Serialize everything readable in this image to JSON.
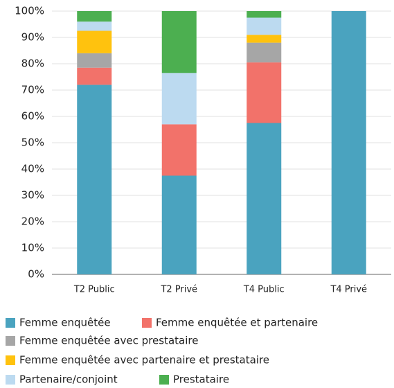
{
  "chart_data": {
    "type": "stacked_bar",
    "categories": [
      "T2 Public",
      "T2 Privé",
      "T4 Public",
      "T4 Privé"
    ],
    "series": [
      {
        "name": "Femme enquêtée",
        "color": "#4aa3bf",
        "values": [
          72,
          37.5,
          57.5,
          100
        ]
      },
      {
        "name": "Femme enquêtée et partenaire",
        "color": "#f2726a",
        "values": [
          6.5,
          19.5,
          23,
          0
        ]
      },
      {
        "name": "Femme enquêtée avec prestataire",
        "color": "#a6a6a6",
        "values": [
          5.5,
          0,
          7.5,
          0
        ]
      },
      {
        "name": "Femme enquêtée avec partenaire et prestataire",
        "color": "#ffc20e",
        "values": [
          8.5,
          0,
          3,
          0
        ]
      },
      {
        "name": "Partenaire/conjoint",
        "color": "#bcdaf0",
        "values": [
          3.5,
          19.5,
          6.5,
          0
        ]
      },
      {
        "name": "Prestataire",
        "color": "#4caf50",
        "values": [
          4,
          23.5,
          2.5,
          0
        ]
      }
    ],
    "ylim": [
      0,
      100
    ],
    "yticks": [
      {
        "value": 0,
        "label": "0%"
      },
      {
        "value": 10,
        "label": "10%"
      },
      {
        "value": 20,
        "label": "20%"
      },
      {
        "value": 30,
        "label": "30%"
      },
      {
        "value": 40,
        "label": "40%"
      },
      {
        "value": 50,
        "label": "50%"
      },
      {
        "value": 60,
        "label": "60%"
      },
      {
        "value": 70,
        "label": "70%"
      },
      {
        "value": 80,
        "label": "80%"
      },
      {
        "value": 90,
        "label": "90%"
      },
      {
        "value": 100,
        "label": "100%"
      }
    ],
    "grid": true
  }
}
